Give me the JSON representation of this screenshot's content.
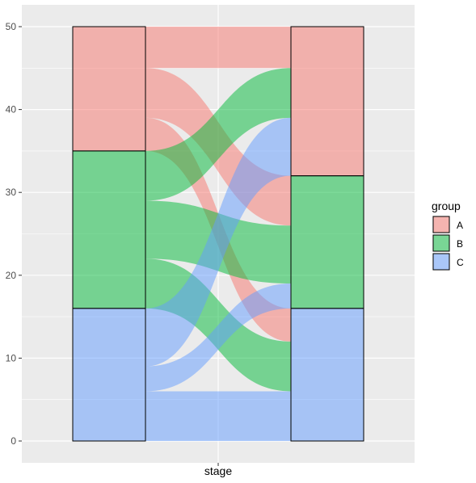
{
  "chart_data": {
    "type": "alluvial",
    "xlabel": "stage",
    "ylabel": "",
    "ylim": [
      0,
      50
    ],
    "y_ticks": [
      0,
      10,
      20,
      30,
      40,
      50
    ],
    "grid": true,
    "legend": {
      "title": "group",
      "position": "right",
      "items": [
        {
          "key": "A",
          "label": "A",
          "color": "#F8766D"
        },
        {
          "key": "B",
          "label": "B",
          "color": "#00BA38"
        },
        {
          "key": "C",
          "label": "C",
          "color": "#619CFF"
        }
      ]
    },
    "stacks": [
      {
        "name": "left",
        "strata": [
          {
            "group": "A",
            "value": 15
          },
          {
            "group": "B",
            "value": 19
          },
          {
            "group": "C",
            "value": 16
          }
        ]
      },
      {
        "name": "right",
        "strata": [
          {
            "group": "A",
            "value": 18
          },
          {
            "group": "B",
            "value": 16
          },
          {
            "group": "C",
            "value": 16
          }
        ]
      }
    ],
    "flows": [
      {
        "from": "A",
        "to": "A",
        "value": 5,
        "color_group": "A"
      },
      {
        "from": "A",
        "to": "B",
        "value": 6,
        "color_group": "A"
      },
      {
        "from": "A",
        "to": "C",
        "value": 4,
        "color_group": "A"
      },
      {
        "from": "B",
        "to": "A",
        "value": 6,
        "color_group": "B"
      },
      {
        "from": "B",
        "to": "B",
        "value": 7,
        "color_group": "B"
      },
      {
        "from": "B",
        "to": "C",
        "value": 6,
        "color_group": "B"
      },
      {
        "from": "C",
        "to": "A",
        "value": 7,
        "color_group": "C"
      },
      {
        "from": "C",
        "to": "B",
        "value": 3,
        "color_group": "C"
      },
      {
        "from": "C",
        "to": "C",
        "value": 6,
        "color_group": "C"
      }
    ]
  }
}
